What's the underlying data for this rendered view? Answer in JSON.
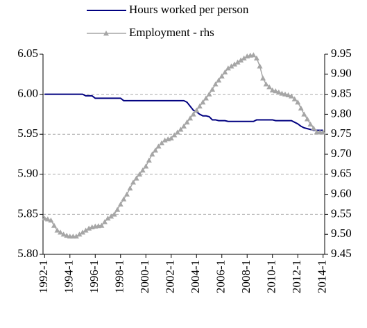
{
  "chart_data": {
    "type": "line",
    "categories": [
      "1992-1",
      null,
      null,
      null,
      null,
      null,
      null,
      null,
      "1994-1",
      null,
      null,
      null,
      null,
      null,
      null,
      null,
      "1996-1",
      null,
      null,
      null,
      null,
      null,
      null,
      null,
      "1998-1",
      null,
      null,
      null,
      null,
      null,
      null,
      null,
      "2000-1",
      null,
      null,
      null,
      null,
      null,
      null,
      null,
      "2002-1",
      null,
      null,
      null,
      null,
      null,
      null,
      null,
      "2004-1",
      null,
      null,
      null,
      null,
      null,
      null,
      null,
      "2006-1",
      null,
      null,
      null,
      null,
      null,
      null,
      null,
      "2008-1",
      null,
      null,
      null,
      null,
      null,
      null,
      null,
      "2010-1",
      null,
      null,
      null,
      null,
      null,
      null,
      null,
      "2012-1",
      null,
      null,
      null,
      null,
      null,
      null,
      null,
      "2014-1"
    ],
    "series": [
      {
        "name": "Hours worked per person",
        "color": "#000080",
        "axis": "y",
        "values": [
          6.0,
          6.0,
          6.0,
          6.0,
          6.0,
          6.0,
          6.0,
          6.0,
          6.0,
          6.0,
          6.0,
          6.0,
          6.0,
          5.998,
          5.998,
          5.998,
          5.995,
          5.995,
          5.995,
          5.995,
          5.995,
          5.995,
          5.995,
          5.995,
          5.995,
          5.992,
          5.992,
          5.992,
          5.992,
          5.992,
          5.992,
          5.992,
          5.992,
          5.992,
          5.992,
          5.992,
          5.992,
          5.992,
          5.992,
          5.992,
          5.992,
          5.992,
          5.992,
          5.992,
          5.992,
          5.99,
          5.985,
          5.98,
          5.978,
          5.975,
          5.973,
          5.973,
          5.972,
          5.968,
          5.968,
          5.967,
          5.967,
          5.967,
          5.966,
          5.966,
          5.966,
          5.966,
          5.966,
          5.966,
          5.966,
          5.966,
          5.966,
          5.968,
          5.968,
          5.968,
          5.968,
          5.968,
          5.968,
          5.967,
          5.967,
          5.967,
          5.967,
          5.967,
          5.967,
          5.965,
          5.963,
          5.96,
          5.958,
          5.957,
          5.956,
          5.955,
          5.955,
          5.955,
          5.955
        ]
      },
      {
        "name": "Employment - rhs",
        "color": "#a6a6a6",
        "axis": "y2",
        "marker": "triangle",
        "values": [
          9.54,
          9.538,
          9.535,
          9.522,
          9.51,
          9.505,
          9.5,
          9.497,
          9.495,
          9.495,
          9.495,
          9.5,
          9.505,
          9.51,
          9.515,
          9.518,
          9.52,
          9.521,
          9.522,
          9.531,
          9.54,
          9.545,
          9.55,
          9.562,
          9.575,
          9.588,
          9.6,
          9.615,
          9.63,
          9.64,
          9.65,
          9.66,
          9.67,
          9.685,
          9.7,
          9.71,
          9.72,
          9.728,
          9.735,
          9.738,
          9.74,
          9.748,
          9.755,
          9.762,
          9.77,
          9.78,
          9.79,
          9.8,
          9.81,
          9.82,
          9.83,
          9.84,
          9.85,
          9.862,
          9.875,
          9.885,
          9.895,
          9.905,
          9.915,
          9.92,
          9.925,
          9.93,
          9.935,
          9.94,
          9.945,
          9.947,
          9.948,
          9.94,
          9.92,
          9.89,
          9.875,
          9.868,
          9.86,
          9.858,
          9.855,
          9.852,
          9.85,
          9.848,
          9.845,
          9.838,
          9.83,
          9.815,
          9.8,
          9.788,
          9.775,
          9.765,
          9.755,
          9.755,
          9.755
        ]
      }
    ],
    "ylim": [
      5.8,
      6.05
    ],
    "yticks": [
      {
        "value": 5.8,
        "label": "5.80"
      },
      {
        "value": 5.85,
        "label": "5.85"
      },
      {
        "value": 5.9,
        "label": "5.90"
      },
      {
        "value": 5.95,
        "label": "5.95"
      },
      {
        "value": 6.0,
        "label": "6.00"
      },
      {
        "value": 6.05,
        "label": "6.05"
      }
    ],
    "y2lim": [
      9.45,
      9.95
    ],
    "y2ticks": [
      {
        "value": 9.45,
        "label": "9.45"
      },
      {
        "value": 9.5,
        "label": "9.50"
      },
      {
        "value": 9.55,
        "label": "9.55"
      },
      {
        "value": 9.6,
        "label": "9.60"
      },
      {
        "value": 9.65,
        "label": "9.65"
      },
      {
        "value": 9.7,
        "label": "9.70"
      },
      {
        "value": 9.75,
        "label": "9.75"
      },
      {
        "value": 9.8,
        "label": "9.80"
      },
      {
        "value": 9.85,
        "label": "9.85"
      },
      {
        "value": 9.9,
        "label": "9.90"
      },
      {
        "value": 9.95,
        "label": "9.95"
      }
    ],
    "grid": true,
    "legend": "top"
  }
}
